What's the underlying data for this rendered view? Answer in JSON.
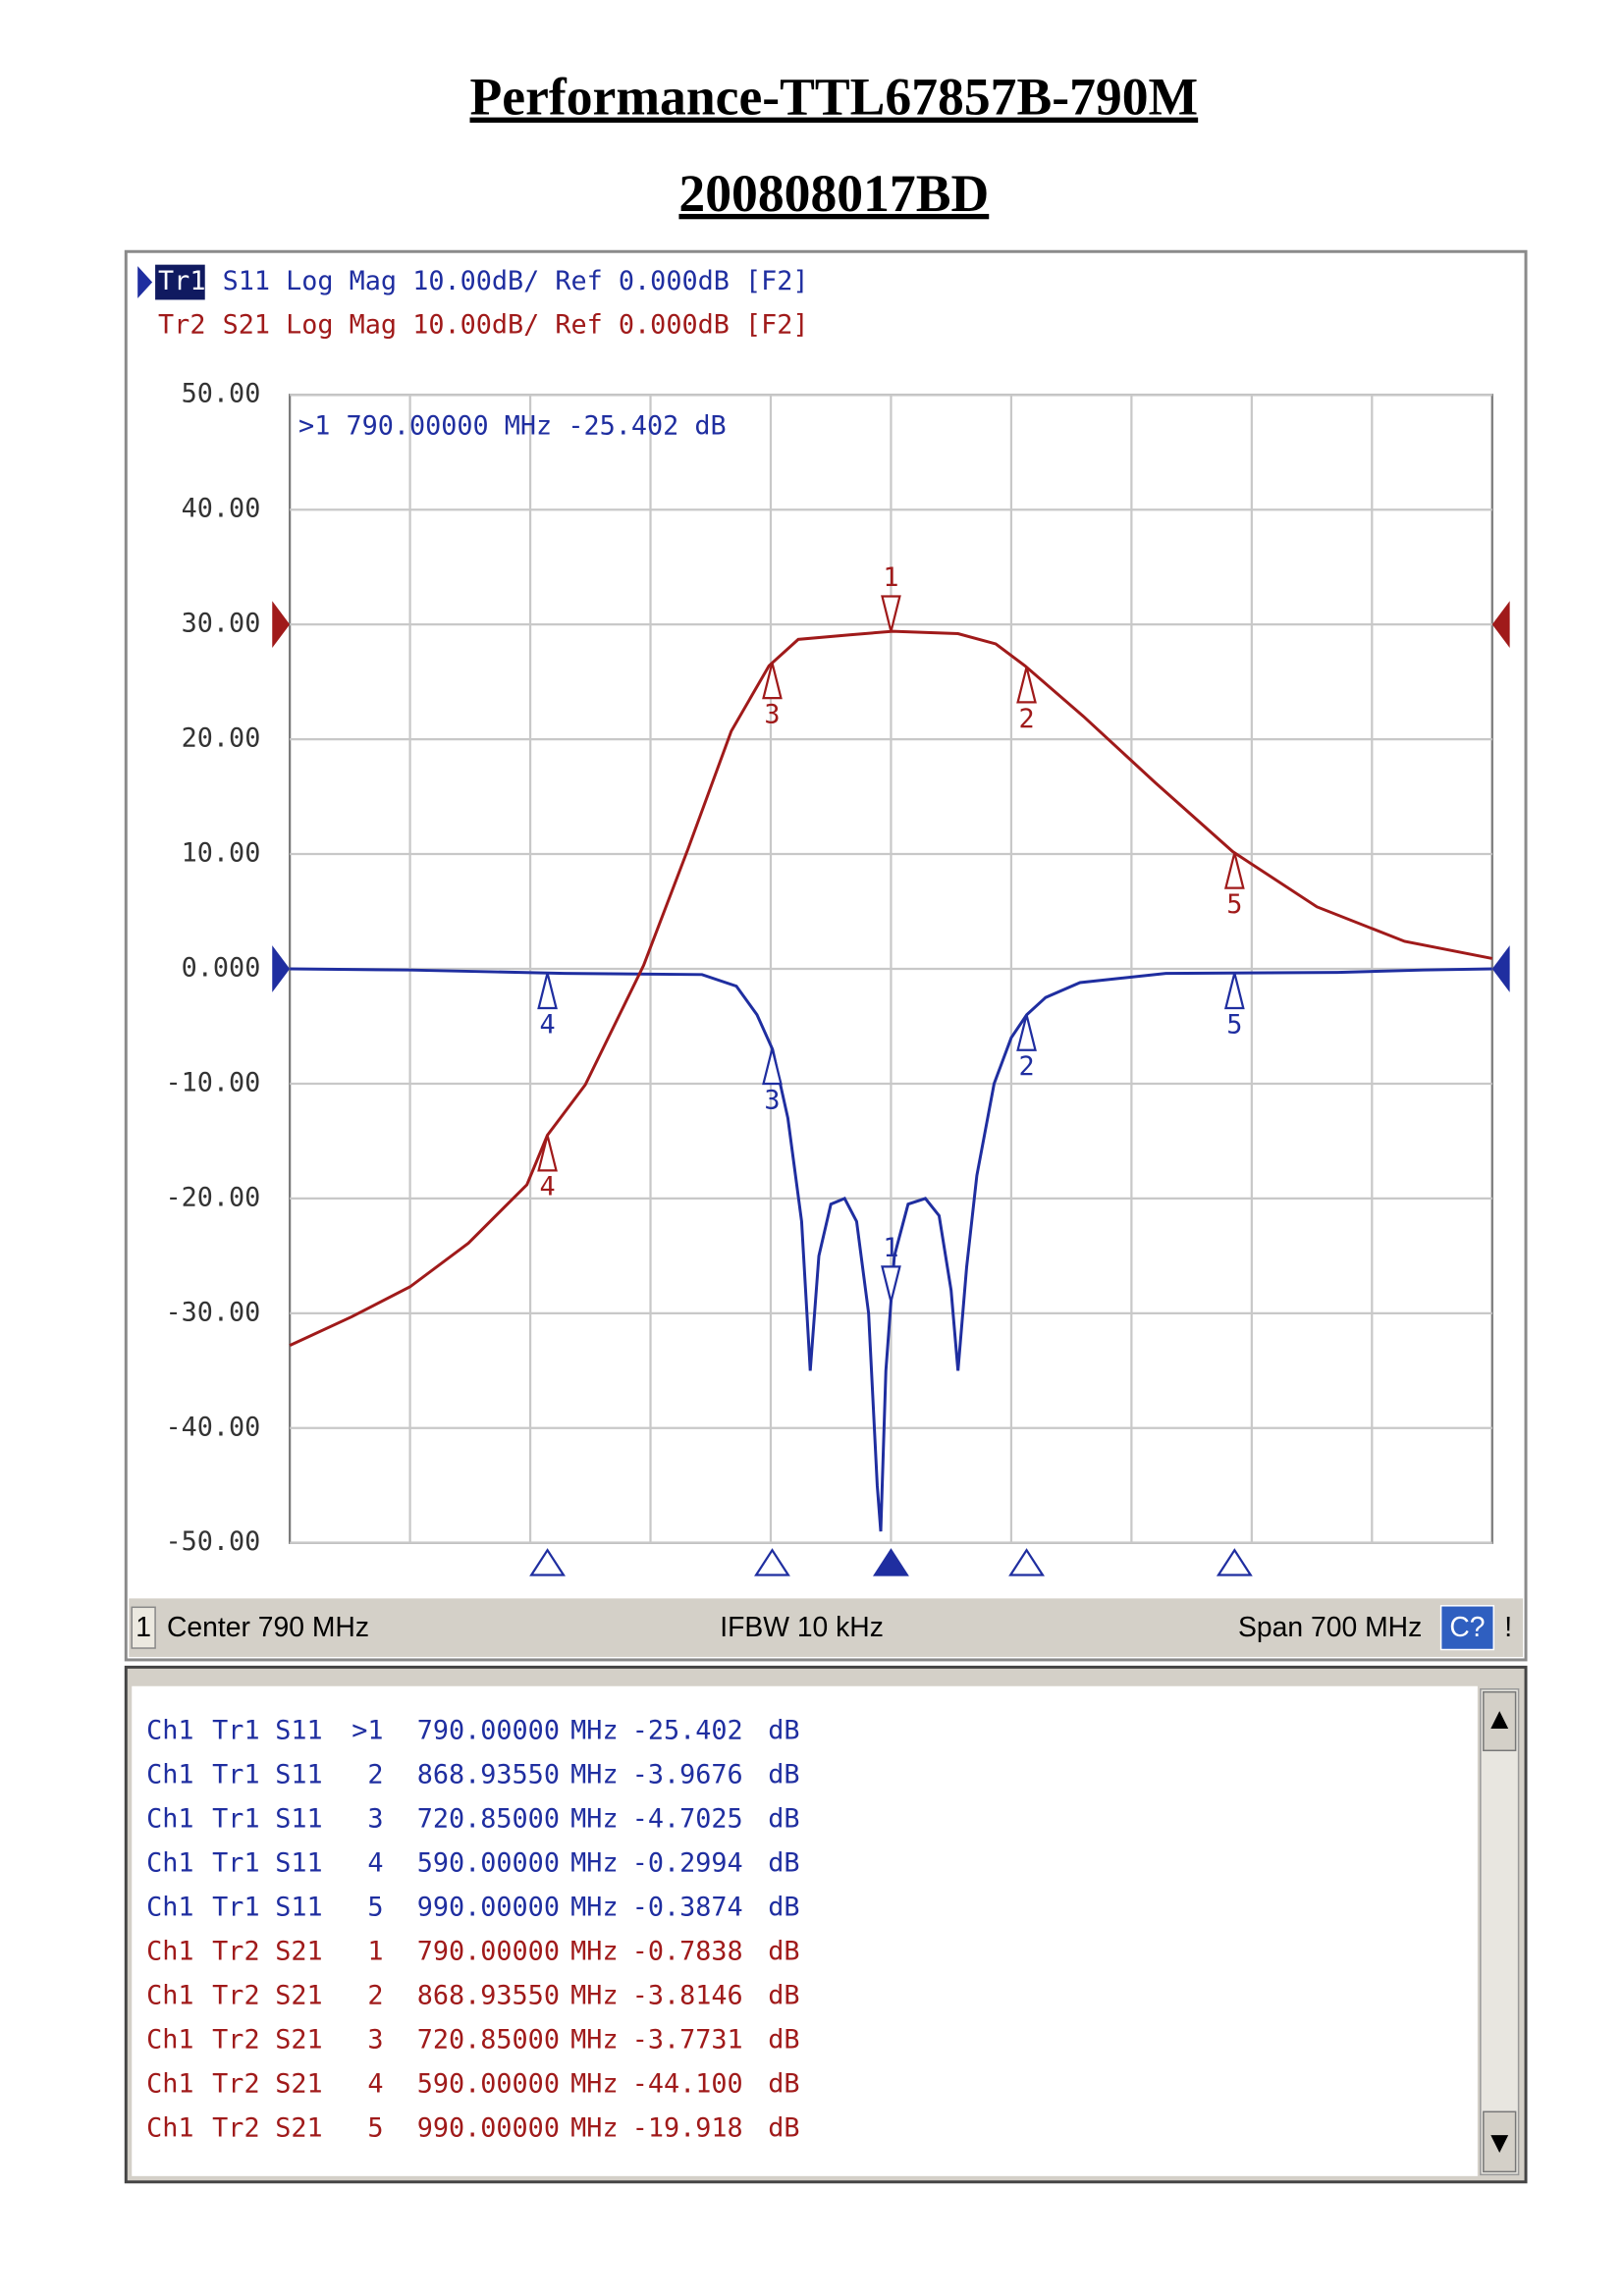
{
  "header": {
    "title": "Performance-TTL67857B-790M",
    "subtitle": "200808017BD"
  },
  "chart_data": {
    "type": "line",
    "series": [
      {
        "name": "Tr1",
        "label": "S11 Log Mag 10.00dB/ Ref 0.000dB [F2]",
        "color": "#1f2ea0",
        "ref": 0,
        "x": [
          440,
          510,
          600,
          680,
          700,
          712,
          721,
          730,
          738,
          743,
          748,
          755,
          763,
          770,
          777,
          782,
          784,
          787,
          792,
          800,
          810,
          818,
          825,
          829,
          834,
          840,
          850,
          860,
          869,
          880,
          900,
          950,
          1050,
          1100,
          1140
        ],
        "values": [
          0,
          -0.1,
          -0.4,
          -0.5,
          -1.5,
          -4,
          -7,
          -13,
          -22,
          -35,
          -25,
          -20.5,
          -20,
          -22,
          -30,
          -45,
          -49,
          -35,
          -25,
          -20.5,
          -20,
          -21.5,
          -28,
          -35,
          -26,
          -18,
          -10,
          -6,
          -4,
          -2.5,
          -1.2,
          -0.4,
          -0.3,
          -0.1,
          0
        ]
      },
      {
        "name": "Tr2",
        "label": "S21 Log Mag 10.00dB/ Ref 0.000dB [F2]",
        "color": "#a01a1a",
        "ref": 30,
        "x": [
          440,
          476,
          510,
          544,
          578,
          590,
          612,
          646,
          672,
          697,
          719,
          736,
          766,
          791,
          829,
          851,
          868,
          902,
          944,
          989,
          1038,
          1089,
          1140
        ],
        "values": [
          -32.8,
          -30.3,
          -27.7,
          -23.9,
          -18.8,
          -14.5,
          -10.1,
          0.3,
          10.5,
          20.7,
          26.4,
          28.7,
          29.1,
          29.4,
          29.2,
          28.3,
          26.4,
          22,
          16.2,
          10.2,
          5.4,
          2.4,
          0.9
        ]
      }
    ],
    "marker_readout": ">1  790.00000 MHz -25.402 dB",
    "markers": {
      "labels": [
        "1",
        "2",
        "3",
        "4",
        "5"
      ],
      "x": [
        790,
        868.9355,
        720.85,
        590,
        990
      ],
      "active": 0
    },
    "xlim": [
      440,
      1140
    ],
    "ylim": [
      -50,
      50
    ],
    "yticks": [
      {
        "value": 50,
        "label": "50.00"
      },
      {
        "value": 40,
        "label": "40.00"
      },
      {
        "value": 30,
        "label": "30.00"
      },
      {
        "value": 20,
        "label": "20.00"
      },
      {
        "value": 10,
        "label": "10.00"
      },
      {
        "value": 0,
        "label": "0.000"
      },
      {
        "value": -10,
        "label": "-10.00"
      },
      {
        "value": -20,
        "label": "-20.00"
      },
      {
        "value": -30,
        "label": "-30.00"
      },
      {
        "value": -40,
        "label": "-40.00"
      },
      {
        "value": -50,
        "label": "-50.00"
      }
    ],
    "grid": true
  },
  "status_bar": {
    "channel": "1",
    "center": "Center 790 MHz",
    "ifbw": "IFBW 10 kHz",
    "span": "Span 700 MHz",
    "button": "C?",
    "flag": "!"
  },
  "marker_table": {
    "rows": [
      [
        "Ch1",
        "Tr1",
        "S11",
        ">1",
        "790.00000",
        "MHz",
        "-25.402",
        "dB"
      ],
      [
        "Ch1",
        "Tr1",
        "S11",
        "2",
        "868.93550",
        "MHz",
        "-3.9676",
        "dB"
      ],
      [
        "Ch1",
        "Tr1",
        "S11",
        "3",
        "720.85000",
        "MHz",
        "-4.7025",
        "dB"
      ],
      [
        "Ch1",
        "Tr1",
        "S11",
        "4",
        "590.00000",
        "MHz",
        "-0.2994",
        "dB"
      ],
      [
        "Ch1",
        "Tr1",
        "S11",
        "5",
        "990.00000",
        "MHz",
        "-0.3874",
        "dB"
      ],
      [
        "Ch1",
        "Tr2",
        "S21",
        "1",
        "790.00000",
        "MHz",
        "-0.7838",
        "dB"
      ],
      [
        "Ch1",
        "Tr2",
        "S21",
        "2",
        "868.93550",
        "MHz",
        "-3.8146",
        "dB"
      ],
      [
        "Ch1",
        "Tr2",
        "S21",
        "3",
        "720.85000",
        "MHz",
        "-3.7731",
        "dB"
      ],
      [
        "Ch1",
        "Tr2",
        "S21",
        "4",
        "590.00000",
        "MHz",
        "-44.100",
        "dB"
      ],
      [
        "Ch1",
        "Tr2",
        "S21",
        "5",
        "990.00000",
        "MHz",
        "-19.918",
        "dB"
      ]
    ]
  }
}
